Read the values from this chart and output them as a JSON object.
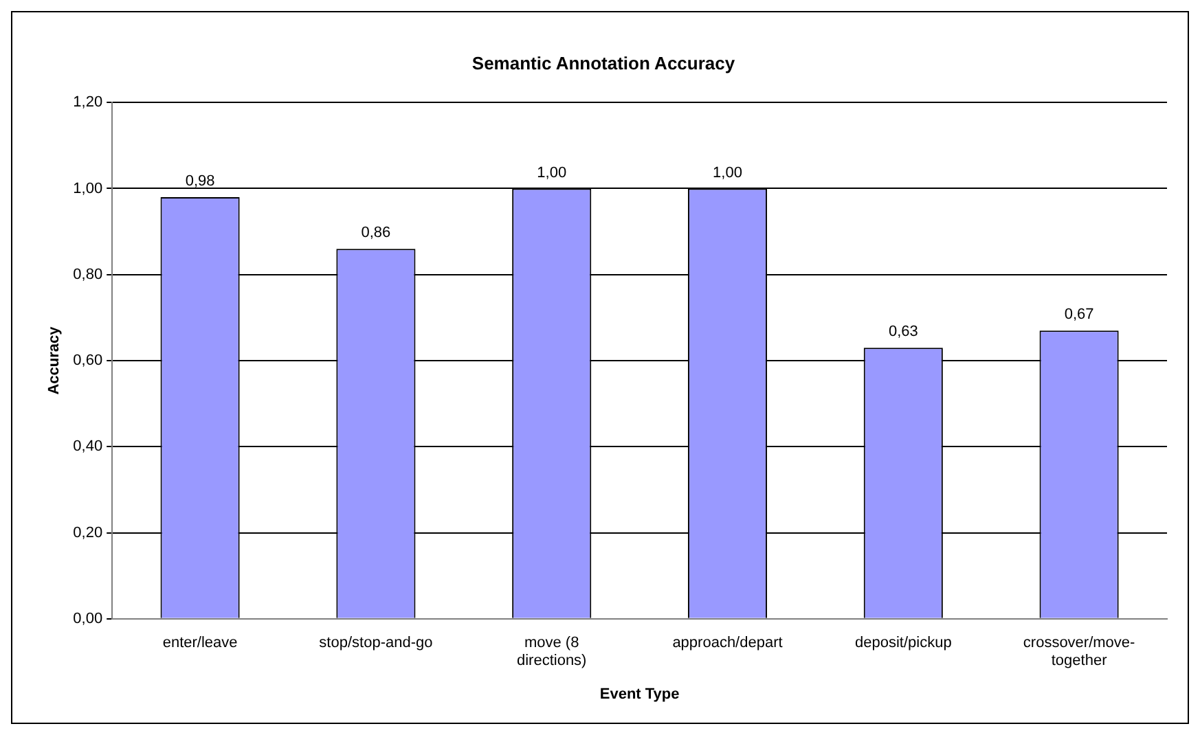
{
  "chart_data": {
    "type": "bar",
    "title": "Semantic Annotation Accuracy",
    "xlabel": "Event Type",
    "ylabel": "Accuracy",
    "categories": [
      "enter/leave",
      "stop/stop-and-go",
      "move (8 directions)",
      "approach/depart",
      "deposit/pickup",
      "crossover/move-together"
    ],
    "values": [
      0.98,
      0.86,
      1.0,
      1.0,
      0.63,
      0.67
    ],
    "value_labels": [
      "0,98",
      "0,86",
      "1,00",
      "1,00",
      "0,63",
      "0,67"
    ],
    "color": "#9999ff",
    "ylim": [
      0,
      1.2
    ],
    "yticks": [
      {
        "value": 0,
        "label": "0,00"
      },
      {
        "value": 0.2,
        "label": "0,20"
      },
      {
        "value": 0.4,
        "label": "0,40"
      },
      {
        "value": 0.6,
        "label": "0,60"
      },
      {
        "value": 0.8,
        "label": "0,80"
      },
      {
        "value": 1.0,
        "label": "1,00"
      },
      {
        "value": 1.2,
        "label": "1,20"
      }
    ],
    "grid": "y",
    "legend": false
  }
}
